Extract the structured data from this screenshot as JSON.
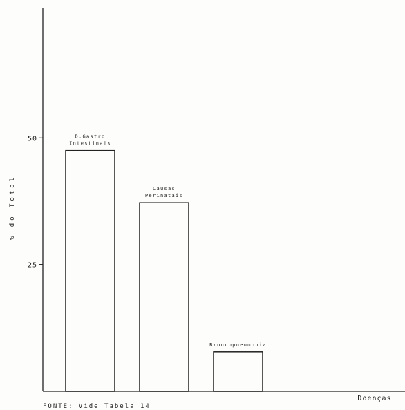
{
  "chart_data": {
    "type": "bar",
    "title": "",
    "xlabel": "Doenças",
    "ylabel": "% do Total",
    "ylim": [
      0,
      75
    ],
    "yticks": [
      25,
      50
    ],
    "grid": false,
    "bars": [
      {
        "label_lines": [
          "D.Gastro",
          "Intestinais"
        ],
        "value": 47.5
      },
      {
        "label_lines": [
          "Causas",
          "Perinatais"
        ],
        "value": 37.2
      },
      {
        "label_lines": [
          "Broncopneumonia"
        ],
        "value": 7.8
      }
    ],
    "source": "FONTE: Vide Tabela 14"
  }
}
